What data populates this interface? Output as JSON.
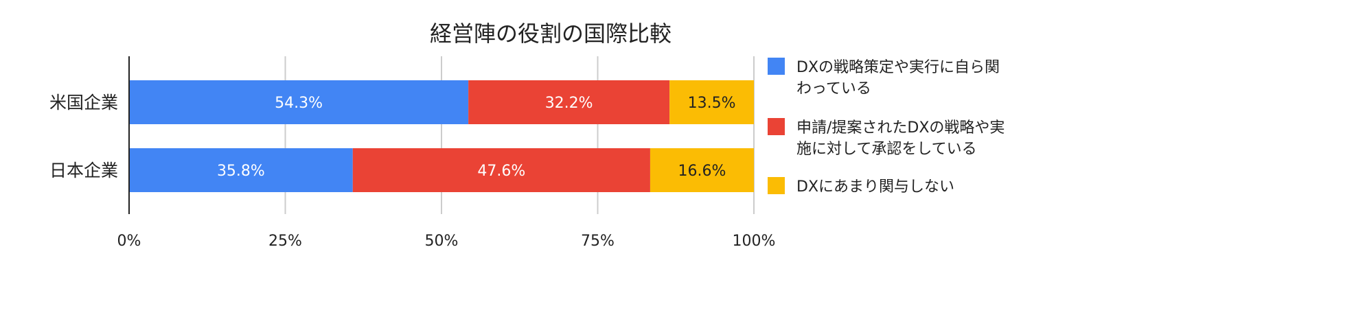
{
  "chart_data": {
    "type": "bar",
    "orientation": "horizontal",
    "stacked": true,
    "title": "経営陣の役割の国際比較",
    "categories": [
      "米国企業",
      "日本企業"
    ],
    "series": [
      {
        "name": "DXの戦略策定や実行に自ら関わっている",
        "name_lines": [
          "DXの戦略策定や実行に自ら関",
          "わっている"
        ],
        "color": "#4285F4",
        "label_color": "#ffffff",
        "values": [
          54.3,
          35.8
        ],
        "labels": [
          "54.3%",
          "35.8%"
        ]
      },
      {
        "name": "申請/提案されたDXの戦略や実施に対して承認をしている",
        "name_lines": [
          "申請/提案されたDXの戦略や実",
          "施に対して承認をしている"
        ],
        "color": "#EA4335",
        "label_color": "#ffffff",
        "values": [
          32.2,
          47.6
        ],
        "labels": [
          "32.2%",
          "47.6%"
        ]
      },
      {
        "name": "DXにあまり関与しない",
        "name_lines": [
          "DXにあまり関与しない"
        ],
        "color": "#FBBC04",
        "label_color": "#222222",
        "values": [
          13.5,
          16.6
        ],
        "labels": [
          "13.5%",
          "16.6%"
        ]
      }
    ],
    "xlim": [
      0,
      100
    ],
    "xticks": [
      "0%",
      "25%",
      "50%",
      "75%",
      "100%"
    ],
    "grid": true,
    "legend_position": "right"
  }
}
